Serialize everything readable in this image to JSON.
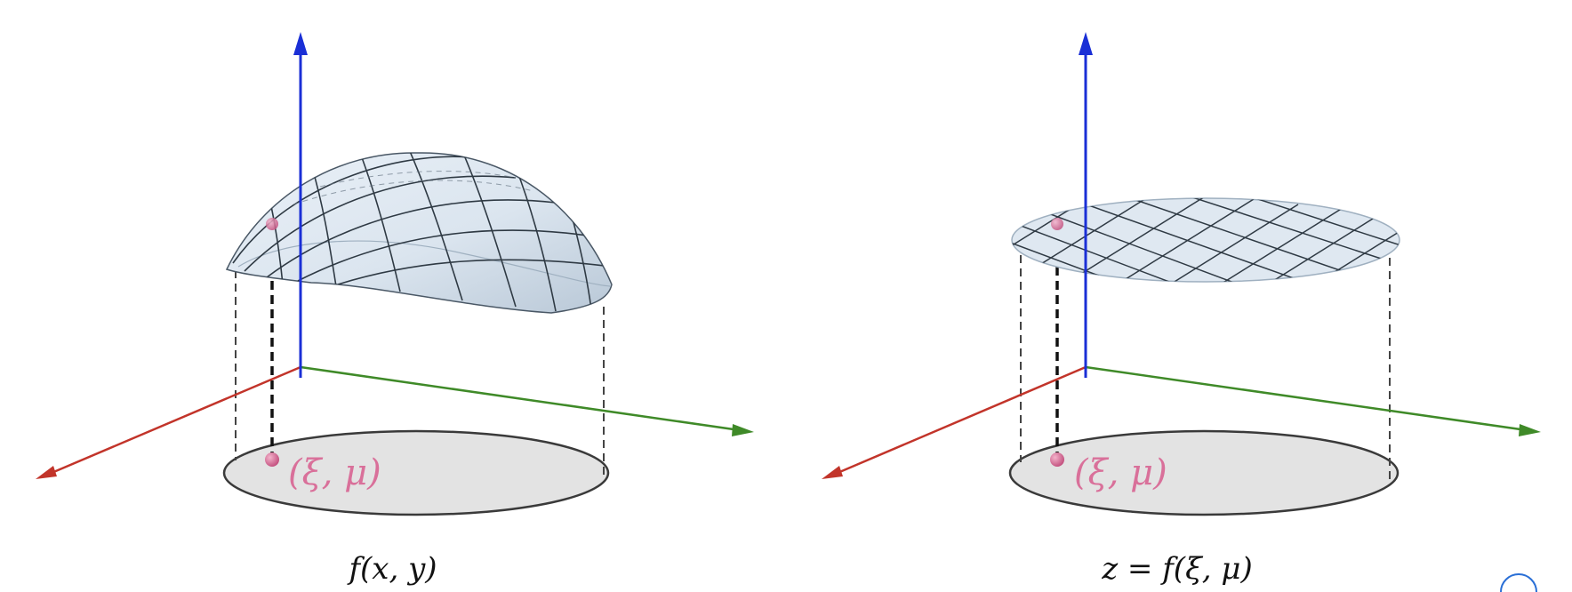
{
  "panels": [
    {
      "point_label": "(ξ, μ)",
      "caption": "f(x, y)"
    },
    {
      "point_label": "(ξ, μ)",
      "caption": "z = f(ξ, μ)"
    }
  ],
  "colors": {
    "x_axis": "#c2342a",
    "y_axis": "#3f8a28",
    "z_axis": "#1a2fd6",
    "surface_fill": "#dfe8f1",
    "domain_fill": "#e3e3e3",
    "point": "#d9709a",
    "mesh": "#333333"
  }
}
